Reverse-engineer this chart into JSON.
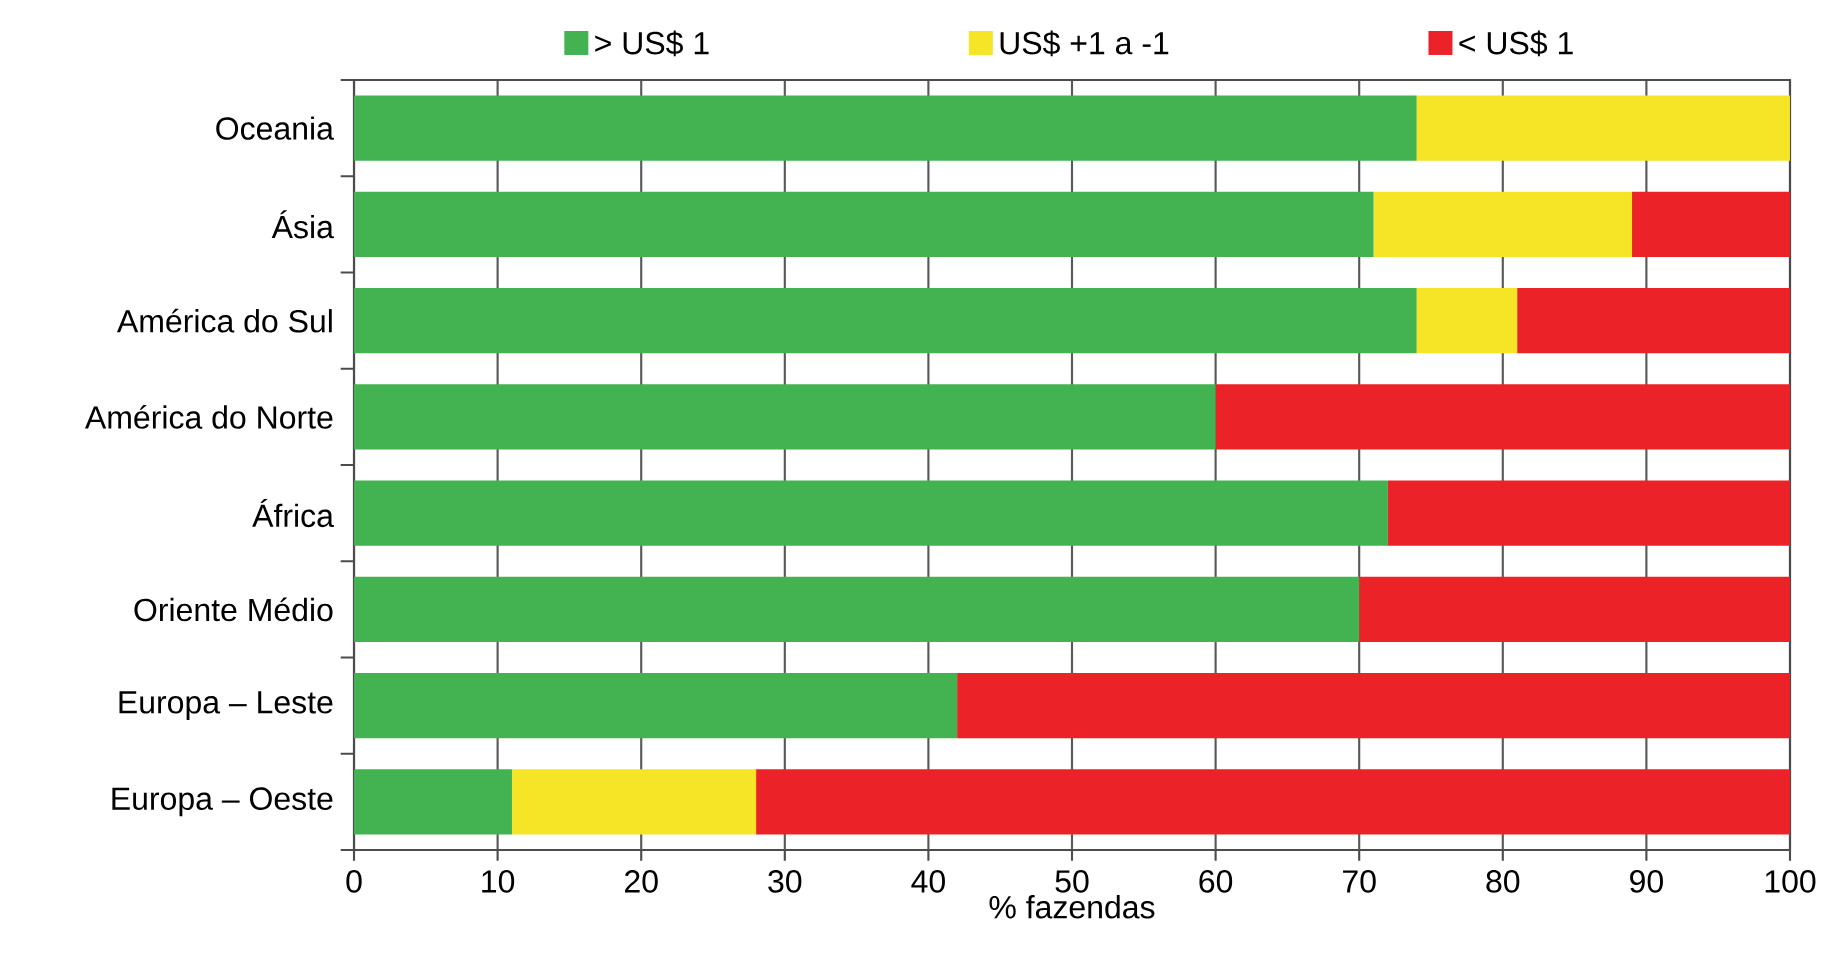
{
  "chart_data": {
    "type": "bar",
    "orientation": "horizontal",
    "stacked": true,
    "xlabel": "% fazendas",
    "categories": [
      "Oceania",
      "Ásia",
      "América do Sul",
      "América do Norte",
      "África",
      "Oriente Médio",
      "Europa – Leste",
      "Europa – Oeste"
    ],
    "series": [
      {
        "name": "> US$ 1",
        "color": "#43b251",
        "values": [
          74,
          71,
          74,
          60,
          72,
          70,
          42,
          11
        ]
      },
      {
        "name": "US$ +1 a -1",
        "color": "#f5e526",
        "values": [
          26,
          18,
          7,
          0,
          0,
          0,
          0,
          17
        ]
      },
      {
        "name": "< US$ 1",
        "color": "#ec2229",
        "values": [
          0,
          11,
          19,
          40,
          28,
          30,
          58,
          72
        ]
      }
    ],
    "xlim": [
      0,
      100
    ],
    "xticks": [
      0,
      10,
      20,
      30,
      40,
      50,
      60,
      70,
      80,
      90,
      100
    ],
    "grid": "x",
    "legend": "top"
  }
}
